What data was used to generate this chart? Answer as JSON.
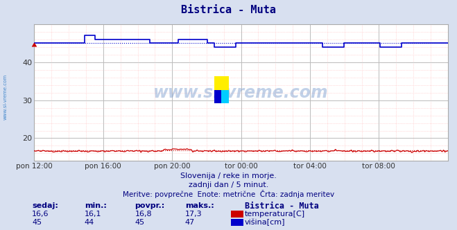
{
  "title": "Bistrica - Muta",
  "title_color": "#000080",
  "bg_color": "#d8e0f0",
  "plot_bg_color": "#ffffff",
  "xlabel_ticks": [
    "pon 12:00",
    "pon 16:00",
    "pon 20:00",
    "tor 00:00",
    "tor 04:00",
    "tor 08:00"
  ],
  "ylim": [
    14,
    50
  ],
  "yticks": [
    20,
    30,
    40
  ],
  "temp_base": 16.6,
  "temp_avg": 16.8,
  "temp_min": 16.1,
  "temp_max": 17.3,
  "visina_base": 45,
  "visina_avg": 45,
  "visina_min": 44,
  "visina_max": 47,
  "temp_color": "#cc0000",
  "visina_color": "#0000cc",
  "watermark": "www.si-vreme.com",
  "subtitle1": "Slovenija / reke in morje.",
  "subtitle2": "zadnji dan / 5 minut.",
  "subtitle3": "Meritve: povprečne  Enote: metrične  Črta: zadnja meritev",
  "footer_color": "#000080",
  "n_points": 288,
  "left_label": "www.si-vreme.com",
  "left_label_color": "#4488cc"
}
